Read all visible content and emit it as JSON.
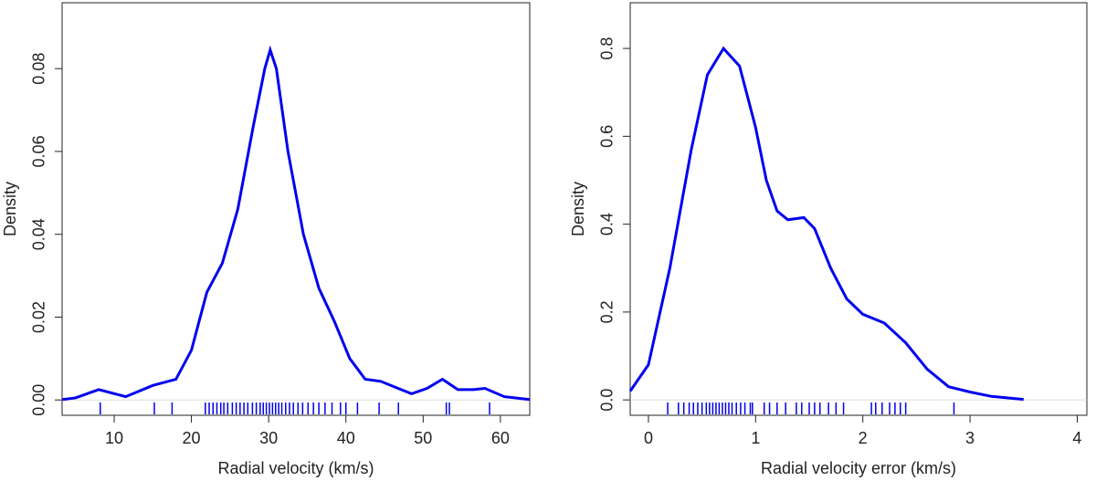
{
  "chart_data": [
    {
      "type": "density",
      "xlabel": "Radial velocity (km/s)",
      "ylabel": "Density",
      "color": "#0000ee",
      "x": [
        3.3,
        5,
        8,
        11.5,
        15,
        18,
        20,
        22,
        24,
        26,
        28,
        29.5,
        30.2,
        31,
        32.5,
        34.5,
        36.5,
        38.5,
        40.5,
        42.5,
        44.5,
        46.5,
        48.5,
        50.5,
        52.5,
        54.5,
        56.5,
        58,
        60.5,
        63.8
      ],
      "values": [
        0.0001,
        0.0005,
        0.0025,
        0.0008,
        0.0035,
        0.005,
        0.012,
        0.026,
        0.033,
        0.046,
        0.066,
        0.08,
        0.0845,
        0.08,
        0.06,
        0.04,
        0.027,
        0.019,
        0.01,
        0.005,
        0.0045,
        0.003,
        0.0015,
        0.0028,
        0.005,
        0.0025,
        0.0025,
        0.0028,
        0.0008,
        0.0001
      ],
      "rug": [
        8.2,
        15.2,
        17.5,
        21.8,
        22.3,
        22.8,
        23.3,
        23.8,
        24.2,
        24.7,
        25.3,
        25.8,
        26.3,
        26.8,
        27.3,
        27.9,
        28.4,
        28.9,
        29.3,
        29.7,
        30.1,
        30.5,
        30.9,
        31.3,
        31.7,
        32.2,
        32.7,
        33.2,
        33.8,
        34.4,
        35.1,
        35.8,
        36.5,
        37.3,
        38.2,
        39.3,
        40.0,
        41.5,
        44.3,
        46.8,
        53.0,
        53.4,
        58.6
      ],
      "xlim": [
        3.26,
        63.8
      ],
      "ylim": [
        -0.0037,
        0.0959
      ],
      "xticks": [
        10,
        20,
        30,
        40,
        50,
        60
      ],
      "yticks": [
        {
          "value": 0,
          "label": "0.00"
        },
        0.02,
        0.04,
        0.06,
        0.08
      ]
    },
    {
      "type": "density",
      "xlabel": "Radial velocity error (km/s)",
      "ylabel": "Density",
      "color": "#0000ee",
      "x": [
        -0.17,
        0,
        0.2,
        0.4,
        0.55,
        0.7,
        0.85,
        1.0,
        1.1,
        1.2,
        1.3,
        1.45,
        1.55,
        1.7,
        1.85,
        2.0,
        2.2,
        2.4,
        2.6,
        2.8,
        3.0,
        3.2,
        3.5
      ],
      "values": [
        0.02,
        0.08,
        0.3,
        0.57,
        0.74,
        0.8,
        0.76,
        0.62,
        0.5,
        0.43,
        0.41,
        0.415,
        0.39,
        0.3,
        0.23,
        0.195,
        0.175,
        0.13,
        0.07,
        0.03,
        0.018,
        0.008,
        0.001
      ],
      "rug": [
        0.18,
        0.28,
        0.33,
        0.38,
        0.42,
        0.46,
        0.5,
        0.54,
        0.57,
        0.6,
        0.63,
        0.66,
        0.69,
        0.72,
        0.75,
        0.78,
        0.82,
        0.86,
        0.9,
        0.95,
        0.97,
        1.08,
        1.13,
        1.2,
        1.28,
        1.38,
        1.43,
        1.5,
        1.55,
        1.6,
        1.68,
        1.75,
        1.82,
        2.08,
        2.12,
        2.18,
        2.25,
        2.3,
        2.35,
        2.4,
        2.85
      ],
      "xlim": [
        -0.17,
        4.09
      ],
      "ylim": [
        -0.035,
        0.904
      ],
      "xticks": [
        0,
        1,
        2,
        3,
        4
      ],
      "yticks": [
        {
          "value": 0,
          "label": "0.0"
        },
        0.2,
        0.4,
        0.6,
        0.8
      ]
    }
  ]
}
